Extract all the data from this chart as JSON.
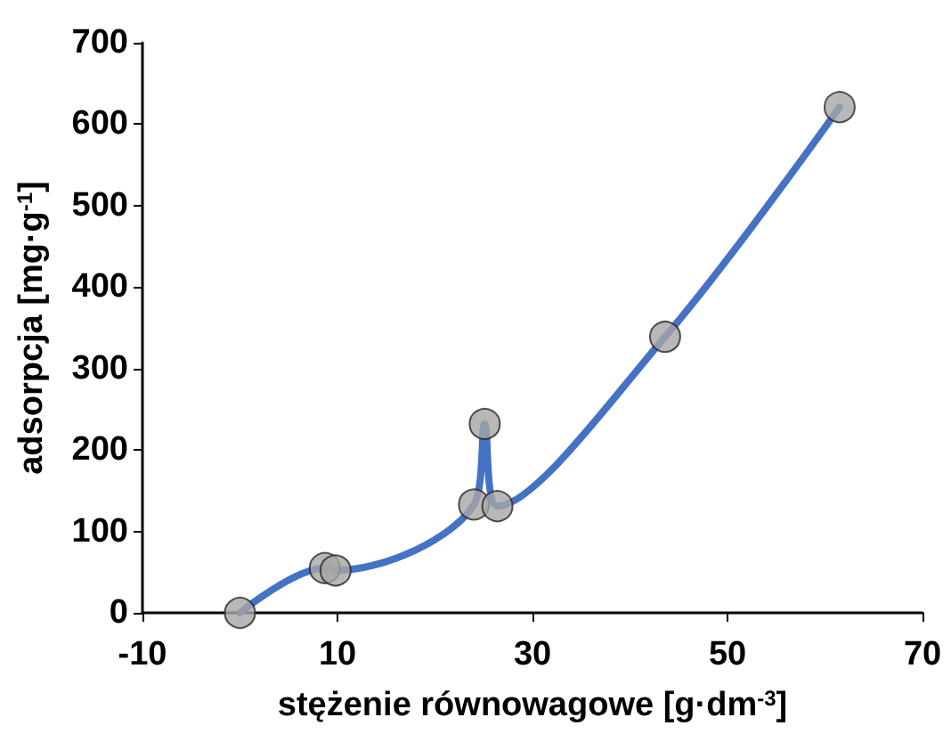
{
  "chart_data": {
    "type": "line",
    "xlabel": "stężenie równowagowe [g·dm$^{-3}$]",
    "ylabel": "adsorpcja [mg·g$^{-1}$]",
    "series": [
      {
        "color": "#4472c4",
        "marker": "none",
        "x": [
          0,
          8.7,
          9.8,
          24,
          25.1,
          26.4,
          43.6,
          61.5
        ],
        "values": [
          0,
          55,
          52,
          133,
          232,
          131,
          339,
          621
        ]
      },
      {
        "type": "scatter",
        "color": "#a6a6a6",
        "marker": "circle",
        "x": [
          0,
          8.7,
          9.8,
          24,
          25.1,
          26.4,
          43.6,
          61.5
        ],
        "values": [
          0,
          55,
          52,
          133,
          232,
          131,
          339,
          621
        ]
      }
    ],
    "xlim": [
      -10,
      70
    ],
    "xticks": [
      -10,
      10,
      30,
      50,
      70
    ],
    "ylim": [
      0,
      700
    ],
    "yticks": [
      0,
      100,
      200,
      300,
      400,
      500,
      600,
      700
    ],
    "grid": false
  }
}
